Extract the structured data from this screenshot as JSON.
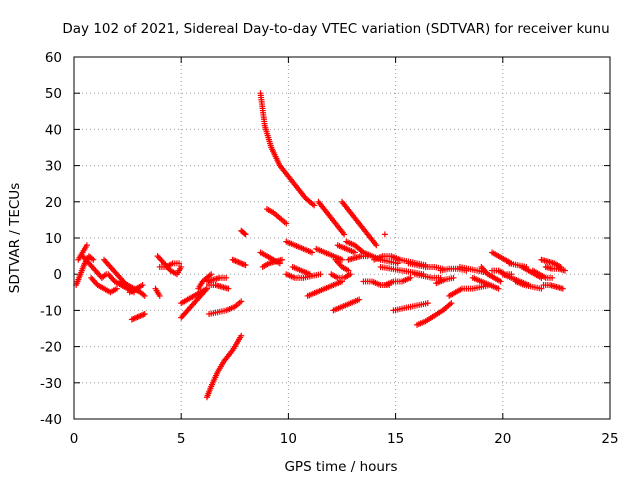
{
  "chart_data": {
    "type": "scatter",
    "title": "Day 102 of 2021, Sidereal Day-to-day VTEC variation (SDTVAR) for receiver kunu",
    "xlabel": "GPS time / hours",
    "ylabel": "SDTVAR / TECUs",
    "xlim": [
      0,
      25
    ],
    "ylim": [
      -40,
      60
    ],
    "xticks": [
      "0",
      "5",
      "10",
      "15",
      "20",
      "25"
    ],
    "yticks": [
      "-40",
      "-30",
      "-20",
      "-10",
      "0",
      "10",
      "20",
      "30",
      "40",
      "50",
      "60"
    ],
    "grid": true,
    "marker": "+",
    "color": "#ff0000",
    "series": [
      {
        "name": "arc01",
        "x": [
          0.1,
          0.3,
          0.5,
          0.7,
          0.9
        ],
        "y": [
          -3,
          0,
          3,
          5,
          4
        ]
      },
      {
        "name": "arc02",
        "x": [
          0.2,
          0.4,
          0.6
        ],
        "y": [
          4,
          6,
          8
        ]
      },
      {
        "name": "arc03",
        "x": [
          0.4,
          0.7,
          1.0,
          1.3,
          1.5
        ],
        "y": [
          5,
          3,
          1,
          -1,
          0
        ]
      },
      {
        "name": "arc04",
        "x": [
          0.8,
          1.1,
          1.4,
          1.7,
          2.0
        ],
        "y": [
          -1,
          -3,
          -4,
          -5,
          -4
        ]
      },
      {
        "name": "arc05",
        "x": [
          1.4,
          1.7,
          2.0,
          2.3,
          2.6
        ],
        "y": [
          4,
          2,
          0,
          -2,
          -4
        ]
      },
      {
        "name": "arc06",
        "x": [
          1.6,
          1.9,
          2.2,
          2.5,
          2.8
        ],
        "y": [
          0,
          -2,
          -3,
          -4,
          -5
        ]
      },
      {
        "name": "arc07",
        "x": [
          2.2,
          2.5,
          2.8,
          3.1,
          3.3
        ],
        "y": [
          -2,
          -3,
          -4,
          -5,
          -6
        ]
      },
      {
        "name": "arc08",
        "x": [
          2.6,
          2.9,
          3.2
        ],
        "y": [
          -5,
          -4,
          -3
        ]
      },
      {
        "name": "arc09",
        "x": [
          2.7,
          2.9,
          3.1,
          3.3
        ],
        "y": [
          -12.5,
          -12,
          -11.5,
          -11
        ]
      },
      {
        "name": "arc10",
        "x": [
          3.8,
          3.9,
          4.0
        ],
        "y": [
          -4,
          -5,
          -6
        ]
      },
      {
        "name": "arc11",
        "x": [
          3.9,
          4.2,
          4.5,
          4.8,
          5.0
        ],
        "y": [
          5,
          3,
          1,
          0,
          2
        ]
      },
      {
        "name": "arc12",
        "x": [
          4.0,
          4.3,
          4.6,
          4.9
        ],
        "y": [
          2,
          2,
          3,
          3
        ]
      },
      {
        "name": "arc13",
        "x": [
          5.0,
          5.3,
          5.6,
          5.9,
          6.2
        ],
        "y": [
          -8,
          -7,
          -6,
          -5,
          -4
        ]
      },
      {
        "name": "arc14",
        "x": [
          5.0,
          5.3,
          5.6,
          5.9,
          6.2
        ],
        "y": [
          -12,
          -10,
          -8,
          -6,
          -4
        ]
      },
      {
        "name": "arc15",
        "x": [
          5.8,
          6.0,
          6.2,
          6.4
        ],
        "y": [
          -4,
          -2,
          -1,
          0
        ]
      },
      {
        "name": "arc16",
        "x": [
          6.2,
          6.4,
          6.7,
          7.0,
          7.4,
          7.8
        ],
        "y": [
          -34,
          -31,
          -27,
          -24,
          -21,
          -17
        ]
      },
      {
        "name": "arc17",
        "x": [
          6.2,
          6.5,
          6.8,
          7.1
        ],
        "y": [
          -2,
          -1.5,
          -1,
          -1
        ]
      },
      {
        "name": "arc18",
        "x": [
          6.3,
          6.7,
          7.1,
          7.5,
          7.8
        ],
        "y": [
          -11,
          -10.5,
          -10,
          -9,
          -7.5
        ]
      },
      {
        "name": "arc19",
        "x": [
          6.3,
          6.6,
          6.9,
          7.2
        ],
        "y": [
          -3,
          -3,
          -3.5,
          -4
        ]
      },
      {
        "name": "arc20",
        "x": [
          7.4,
          7.6,
          7.8,
          8.0
        ],
        "y": [
          4,
          3.5,
          3,
          2.5
        ]
      },
      {
        "name": "arc21",
        "x": [
          7.8,
          7.9,
          8.0
        ],
        "y": [
          12,
          11.5,
          11
        ]
      },
      {
        "name": "arc22",
        "x": [
          8.7,
          8.9,
          9.2,
          9.6,
          10.0,
          10.4,
          10.8,
          11.2
        ],
        "y": [
          50,
          41,
          35,
          30,
          27,
          24,
          21,
          19
        ]
      },
      {
        "name": "arc23",
        "x": [
          8.7,
          9.0,
          9.3,
          9.6
        ],
        "y": [
          6,
          5,
          4,
          3
        ]
      },
      {
        "name": "arc24",
        "x": [
          8.8,
          9.1,
          9.4,
          9.7
        ],
        "y": [
          2,
          3,
          3.5,
          4
        ]
      },
      {
        "name": "arc25",
        "x": [
          9.0,
          9.3,
          9.6,
          9.9
        ],
        "y": [
          18,
          17,
          15.5,
          14
        ]
      },
      {
        "name": "arc26",
        "x": [
          9.9,
          10.3,
          10.7,
          11.1
        ],
        "y": [
          9,
          8,
          7,
          6
        ]
      },
      {
        "name": "arc27",
        "x": [
          9.9,
          10.3,
          10.7,
          11.1,
          11.5
        ],
        "y": [
          0,
          -1,
          -1,
          -0.5,
          0
        ]
      },
      {
        "name": "arc28",
        "x": [
          10.2,
          10.6,
          11.0
        ],
        "y": [
          2,
          1,
          0
        ]
      },
      {
        "name": "arc29",
        "x": [
          10.9,
          11.3,
          11.7,
          12.1,
          12.5
        ],
        "y": [
          -6,
          -5,
          -4,
          -3,
          -2
        ]
      },
      {
        "name": "arc30",
        "x": [
          11.3,
          11.7,
          12.1,
          12.5
        ],
        "y": [
          7,
          6,
          5,
          4
        ]
      },
      {
        "name": "arc31",
        "x": [
          11.4,
          11.8,
          12.2,
          12.6
        ],
        "y": [
          20,
          17,
          14,
          11
        ]
      },
      {
        "name": "arc32",
        "x": [
          12.0,
          12.3,
          12.6,
          12.9
        ],
        "y": [
          0,
          -1,
          -1,
          0
        ]
      },
      {
        "name": "arc33",
        "x": [
          12.1,
          12.5,
          12.9,
          13.3
        ],
        "y": [
          -10,
          -9,
          -8,
          -7
        ]
      },
      {
        "name": "arc34",
        "x": [
          12.2,
          12.5,
          12.8
        ],
        "y": [
          4,
          2,
          1
        ]
      },
      {
        "name": "arc35",
        "x": [
          12.3,
          12.7,
          13.1
        ],
        "y": [
          8,
          7,
          6
        ]
      },
      {
        "name": "arc36",
        "x": [
          12.5,
          12.9,
          13.3,
          13.7,
          14.1
        ],
        "y": [
          20,
          17,
          14,
          11,
          8
        ]
      },
      {
        "name": "arc37",
        "x": [
          12.7,
          13.1,
          13.5,
          13.9,
          14.3,
          14.7,
          15.1
        ],
        "y": [
          9,
          8,
          6,
          5,
          4,
          3.5,
          3
        ]
      },
      {
        "name": "arc38",
        "x": [
          12.8,
          13.1,
          13.4,
          13.7
        ],
        "y": [
          4,
          4.5,
          5,
          5
        ]
      },
      {
        "name": "arc39",
        "x": [
          13.5,
          13.9,
          14.3,
          14.7
        ],
        "y": [
          -2,
          -2,
          -3,
          -3
        ]
      },
      {
        "name": "arc40",
        "x": [
          14.5
        ],
        "y": [
          11
        ]
      },
      {
        "name": "arc41",
        "x": [
          14.0,
          14.4,
          14.8,
          15.2
        ],
        "y": [
          4,
          5,
          5,
          4
        ]
      },
      {
        "name": "arc42",
        "x": [
          14.3,
          14.8,
          15.3,
          15.8,
          16.3
        ],
        "y": [
          2,
          1.5,
          1,
          0.5,
          0
        ]
      },
      {
        "name": "arc43",
        "x": [
          14.5,
          14.9,
          15.3,
          15.7
        ],
        "y": [
          -3,
          -2,
          -2,
          -1
        ]
      },
      {
        "name": "arc44",
        "x": [
          14.9,
          15.3,
          15.7,
          16.1,
          16.5
        ],
        "y": [
          -10,
          -9.5,
          -9,
          -8.5,
          -8
        ]
      },
      {
        "name": "arc45",
        "x": [
          15.2,
          15.6,
          16.0,
          16.4
        ],
        "y": [
          4,
          3.5,
          3,
          2.5
        ]
      },
      {
        "name": "arc46",
        "x": [
          15.6,
          16.0,
          16.4,
          16.8,
          17.2
        ],
        "y": [
          3,
          2.5,
          2,
          2,
          1.5
        ]
      },
      {
        "name": "arc47",
        "x": [
          15.9,
          16.3,
          16.7,
          17.1
        ],
        "y": [
          0,
          -0.5,
          -1,
          -1
        ]
      },
      {
        "name": "arc48",
        "x": [
          16.0,
          16.4,
          16.8,
          17.2,
          17.6
        ],
        "y": [
          -14,
          -13,
          -11.5,
          -10,
          -8
        ]
      },
      {
        "name": "arc49",
        "x": [
          16.9,
          17.3,
          17.7
        ],
        "y": [
          -2.5,
          -1.5,
          -1
        ]
      },
      {
        "name": "arc50",
        "x": [
          17.1,
          17.5,
          17.9,
          18.3
        ],
        "y": [
          1,
          1.5,
          1.5,
          1
        ]
      },
      {
        "name": "arc51",
        "x": [
          17.5,
          17.8,
          18.1
        ],
        "y": [
          -6,
          -5,
          -4
        ]
      },
      {
        "name": "arc52",
        "x": [
          18.0,
          18.4,
          18.8,
          19.2
        ],
        "y": [
          2,
          1.5,
          1,
          0.5
        ]
      },
      {
        "name": "arc53",
        "x": [
          18.2,
          18.6,
          19.0,
          19.4
        ],
        "y": [
          -4,
          -4,
          -3.5,
          -3
        ]
      },
      {
        "name": "arc54",
        "x": [
          18.6,
          19.0,
          19.4,
          19.8
        ],
        "y": [
          -1,
          -2,
          -3,
          -4
        ]
      },
      {
        "name": "arc55",
        "x": [
          19.0,
          19.3,
          19.6,
          19.9
        ],
        "y": [
          2,
          0,
          -1,
          -2
        ]
      },
      {
        "name": "arc56",
        "x": [
          19.5,
          19.8,
          20.1,
          20.4
        ],
        "y": [
          6,
          5,
          4,
          3
        ]
      },
      {
        "name": "arc57",
        "x": [
          19.5,
          19.8,
          20.1,
          20.4
        ],
        "y": [
          1,
          1,
          0,
          0
        ]
      },
      {
        "name": "arc58",
        "x": [
          20.0,
          20.4,
          20.8,
          21.2
        ],
        "y": [
          0,
          -1,
          -2,
          -3
        ]
      },
      {
        "name": "arc59",
        "x": [
          20.3,
          20.7,
          21.1
        ],
        "y": [
          3,
          2.5,
          2
        ]
      },
      {
        "name": "arc60",
        "x": [
          20.6,
          21.0,
          21.4,
          21.8
        ],
        "y": [
          -2,
          -3,
          -3.5,
          -4
        ]
      },
      {
        "name": "arc61",
        "x": [
          20.9,
          21.2,
          21.5,
          21.8
        ],
        "y": [
          2,
          1,
          0,
          -1
        ]
      },
      {
        "name": "arc62",
        "x": [
          21.4,
          21.7,
          22.0,
          22.3
        ],
        "y": [
          1,
          0,
          -1,
          -1
        ]
      },
      {
        "name": "arc63",
        "x": [
          21.9,
          22.2,
          22.5,
          22.8
        ],
        "y": [
          -3,
          -3,
          -3.5,
          -4
        ]
      },
      {
        "name": "arc64",
        "x": [
          21.8,
          22.1,
          22.4,
          22.7
        ],
        "y": [
          4,
          3.5,
          3,
          2
        ]
      },
      {
        "name": "arc65",
        "x": [
          22.0,
          22.3,
          22.6,
          22.9
        ],
        "y": [
          2,
          1.5,
          1.5,
          1
        ]
      }
    ]
  }
}
